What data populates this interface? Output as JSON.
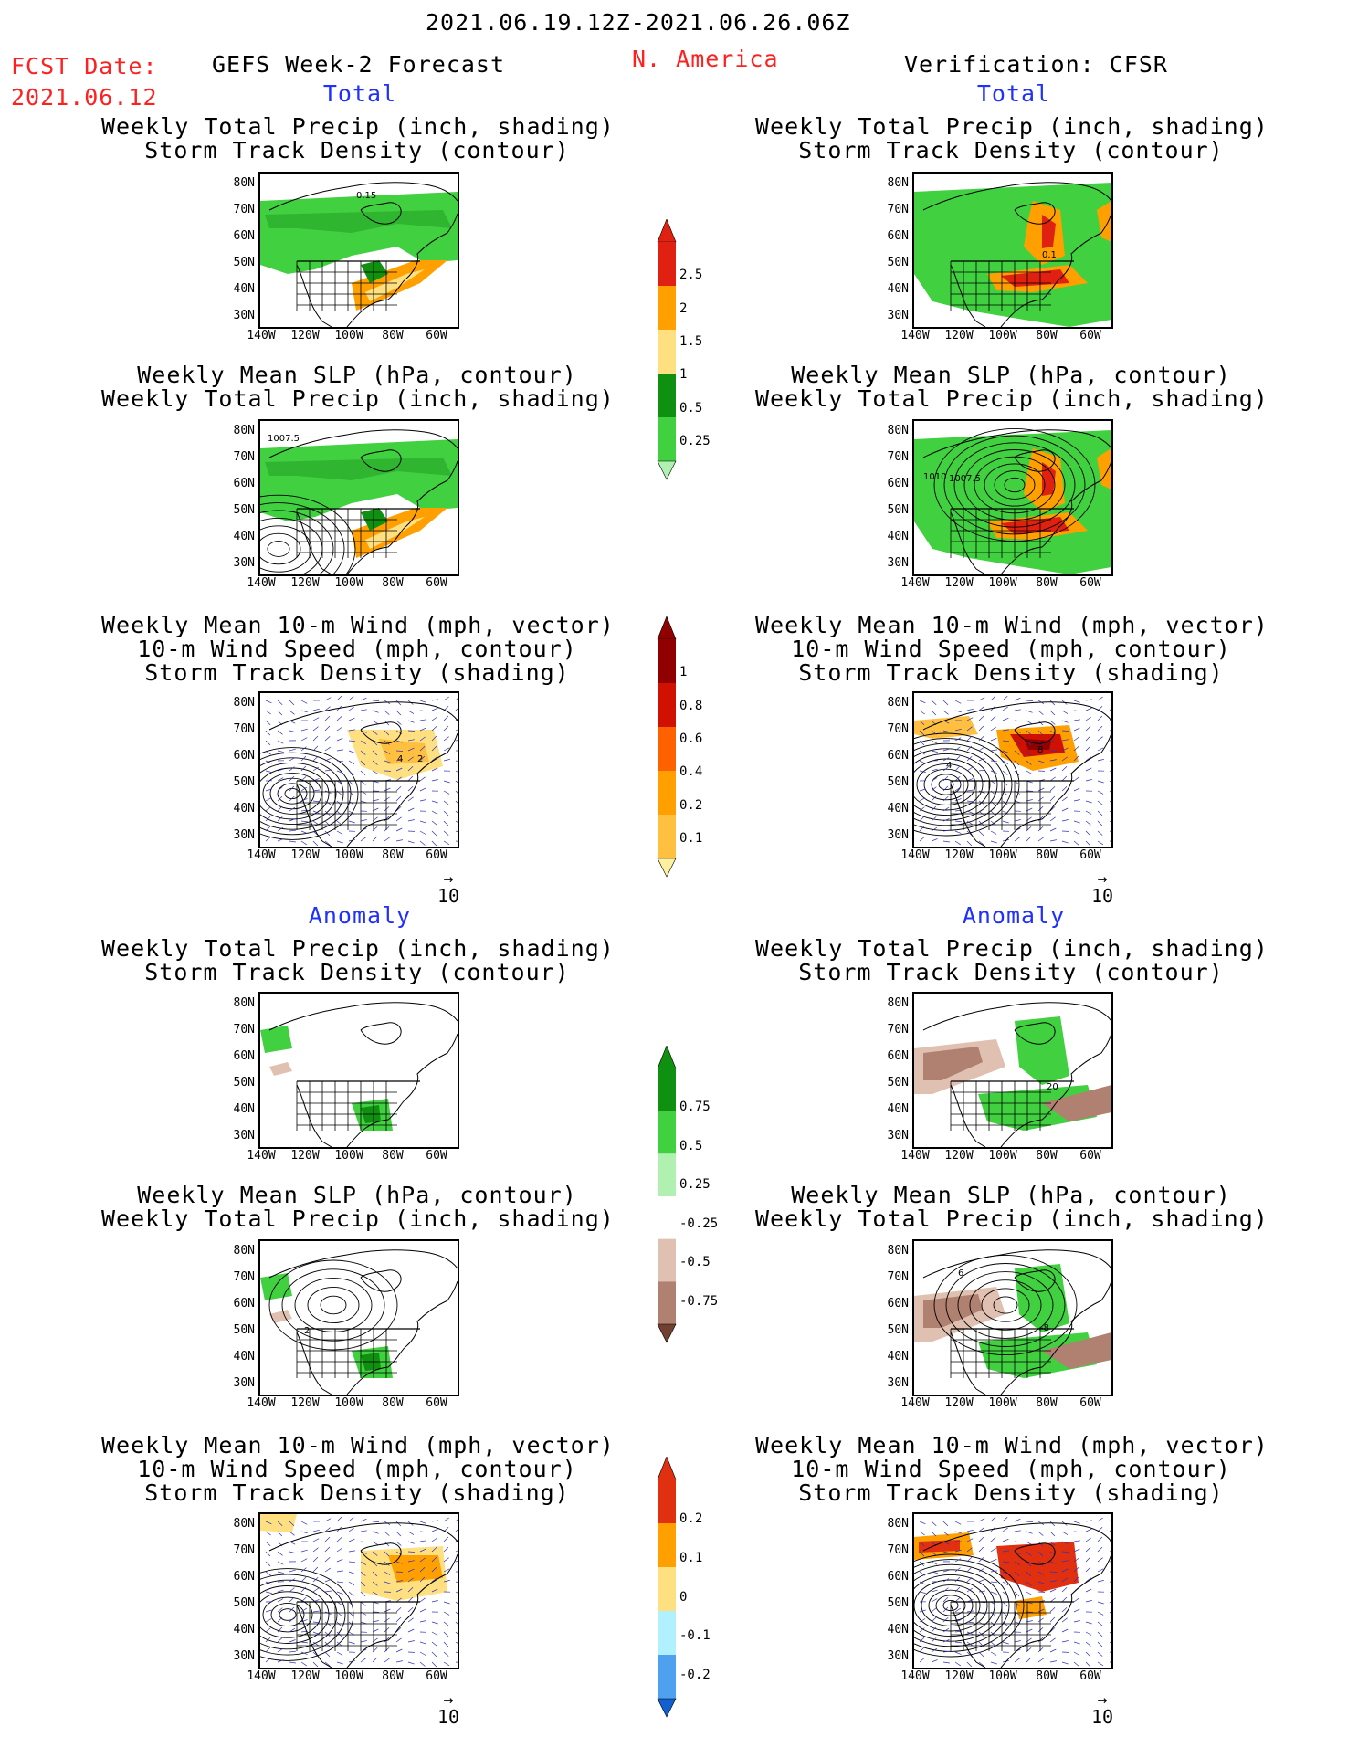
{
  "header": {
    "date_range": "2021.06.19.12Z-2021.06.26.06Z",
    "fcst_label": "FCST Date:",
    "fcst_date": "2021.06.12",
    "left_title": "GEFS Week-2 Forecast",
    "region": "N. America",
    "right_title": "Verification: CFSR"
  },
  "sections": {
    "total": "Total",
    "anomaly": "Anomaly"
  },
  "panel_titles": {
    "precip_track": [
      "Weekly Total Precip (inch, shading)",
      "Storm Track Density (contour)"
    ],
    "slp_precip": [
      "Weekly Mean SLP (hPa, contour)",
      "Weekly Total Precip (inch, shading)"
    ],
    "wind_track": [
      "Weekly Mean 10-m Wind (mph, vector)",
      "10-m Wind Speed (mph, contour)",
      "Storm Track Density (shading)"
    ]
  },
  "axes": {
    "lat_ticks": [
      "80N",
      "70N",
      "60N",
      "50N",
      "40N",
      "30N"
    ],
    "lon_ticks": [
      "140W",
      "120W",
      "100W",
      "80W",
      "60W"
    ]
  },
  "vector_ref": "10",
  "contour_labels": {
    "fcst_total_track": "0.15",
    "obs_total_track": "0.1",
    "fcst_total_slp": "1007.5",
    "obs_total_slp_a": "1010",
    "obs_total_slp_b": "1007.5",
    "fcst_total_wind_a": "4",
    "fcst_total_wind_b": "2",
    "obs_total_wind_a": "8",
    "obs_total_wind_b": "4",
    "fcst_anom_slp": "2",
    "obs_anom_slp_a": "6",
    "obs_anom_slp_b": "-8",
    "obs_anom_track": "20"
  },
  "colorbars": {
    "precip_total": {
      "labels": [
        "2.5",
        "2",
        "1.5",
        "1",
        "0.5",
        "0.25"
      ],
      "colors": [
        "#e02010",
        "#ffa000",
        "#ffe080",
        "#109010",
        "#40d040",
        "#b0f0b0"
      ]
    },
    "track_total": {
      "labels": [
        "1",
        "0.8",
        "0.6",
        "0.4",
        "0.2",
        "0.1"
      ],
      "colors": [
        "#900000",
        "#d01000",
        "#ff6000",
        "#ffa000",
        "#ffc040",
        "#fff0a0"
      ]
    },
    "precip_anom": {
      "labels": [
        "0.75",
        "0.5",
        "0.25",
        "-0.25",
        "-0.5",
        "-0.75"
      ],
      "colors": [
        "#109010",
        "#40d040",
        "#b0f0b0",
        "#ffffff",
        "#e0c0b0",
        "#b08070",
        "#704030"
      ]
    },
    "track_anom": {
      "labels": [
        "0.2",
        "0.1",
        "0",
        "-0.1",
        "-0.2"
      ],
      "colors": [
        "#e03010",
        "#ffa000",
        "#ffe080",
        "#b0f0ff",
        "#50a0f0",
        "#1060d0"
      ]
    }
  }
}
